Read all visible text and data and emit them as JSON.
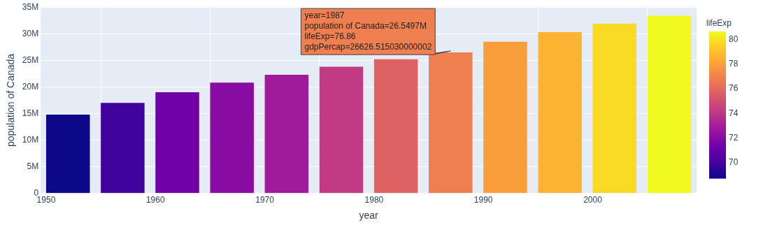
{
  "chart_data": {
    "type": "bar",
    "xlabel": "year",
    "ylabel": "population of Canada",
    "clabel": "lifeExp",
    "x": [
      1952,
      1957,
      1962,
      1967,
      1972,
      1977,
      1982,
      1987,
      1992,
      1997,
      2002,
      2007
    ],
    "values": [
      14.8,
      17,
      19,
      20.8,
      22.3,
      23.8,
      25.2,
      26.5,
      28.5,
      30.3,
      31.9,
      33.4
    ],
    "cvalues": [
      68.75,
      69.96,
      71.3,
      72.13,
      72.88,
      74.21,
      75.76,
      76.86,
      77.95,
      78.61,
      79.77,
      80.65
    ],
    "clim": [
      68.75,
      80.65
    ],
    "cticks": [
      70,
      72,
      74,
      76,
      78,
      80
    ],
    "xlim": [
      1949.5,
      2009.5
    ],
    "xticks": [
      1950,
      1960,
      1970,
      1980,
      1990,
      2000
    ],
    "ylim": [
      0,
      35
    ],
    "yticks": [
      {
        "value": 0,
        "label": "0"
      },
      {
        "value": 5,
        "label": "5M"
      },
      {
        "value": 10,
        "label": "10M"
      },
      {
        "value": 15,
        "label": "15M"
      },
      {
        "value": 20,
        "label": "20M"
      },
      {
        "value": 25,
        "label": "25M"
      },
      {
        "value": 30,
        "label": "30M"
      },
      {
        "value": 35,
        "label": "35M"
      }
    ],
    "grid": true,
    "legend": false,
    "annotations": [
      {
        "text": "year=1987\npopulation of Canada=26.5497M\nlifeExp=76.86\ngdpPercap=26626.515030000002",
        "x": 1987,
        "y": 26.5
      }
    ]
  }
}
